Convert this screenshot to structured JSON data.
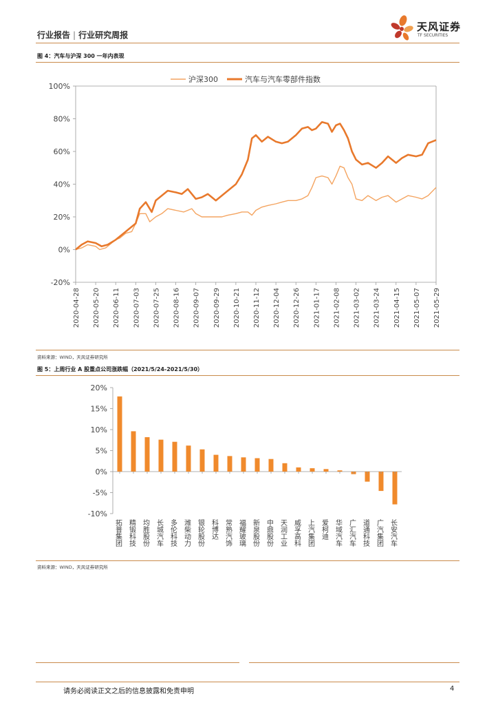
{
  "header": {
    "category": "行业报告",
    "separator": "|",
    "report_type": "行业研究周报"
  },
  "logo": {
    "name": "天风证券",
    "sub": "TF SECURITIES",
    "colors": [
      "#e8792c",
      "#c0392b",
      "#f0a050"
    ]
  },
  "accent_color": "#f08a2c",
  "figure4": {
    "title": "图 4：汽车与沪深 300 一年内表现",
    "source": "资料来源：WIND，天风证券研究所"
  },
  "figure5": {
    "title": "图 5：上周行业 A 股重点公司涨跌幅（2021/5/24-2021/5/30）",
    "source": "资料来源：WIND，天风证券研究所"
  },
  "chart_data": [
    {
      "type": "line",
      "title": "图 4：汽车与沪深 300 一年内表现",
      "x": [
        "2020-04-28",
        "2020-05-20",
        "2020-06-11",
        "2020-07-03",
        "2020-07-25",
        "2020-08-16",
        "2020-09-07",
        "2020-09-29",
        "2020-10-21",
        "2020-11-12",
        "2020-12-04",
        "2020-12-26",
        "2021-01-17",
        "2021-02-08",
        "2021-03-02",
        "2021-03-24",
        "2021-04-15",
        "2021-05-07",
        "2021-05-29"
      ],
      "ylim": [
        -20,
        100
      ],
      "yticks": [
        "-20%",
        "0%",
        "20%",
        "40%",
        "60%",
        "80%",
        "100%"
      ],
      "ytick_values": [
        -20,
        0,
        20,
        40,
        60,
        80,
        100
      ],
      "legend_position": "top",
      "series": [
        {
          "name": "沪深300",
          "color": "#f4a460",
          "points": [
            [
              0,
              0
            ],
            [
              0.3,
              1
            ],
            [
              0.6,
              3
            ],
            [
              1.0,
              2
            ],
            [
              1.2,
              0
            ],
            [
              1.5,
              1
            ],
            [
              1.8,
              4
            ],
            [
              2.0,
              6
            ],
            [
              2.2,
              7
            ],
            [
              2.5,
              10
            ],
            [
              2.8,
              11
            ],
            [
              3.0,
              16
            ],
            [
              3.2,
              22
            ],
            [
              3.5,
              22
            ],
            [
              3.7,
              17
            ],
            [
              4.0,
              20
            ],
            [
              4.3,
              22
            ],
            [
              4.6,
              25
            ],
            [
              5.0,
              24
            ],
            [
              5.4,
              23
            ],
            [
              5.8,
              25
            ],
            [
              6.0,
              22
            ],
            [
              6.3,
              20
            ],
            [
              6.7,
              20
            ],
            [
              7.0,
              20
            ],
            [
              7.3,
              20
            ],
            [
              7.6,
              21
            ],
            [
              8.0,
              22
            ],
            [
              8.3,
              23
            ],
            [
              8.6,
              23
            ],
            [
              8.8,
              21
            ],
            [
              9.0,
              24
            ],
            [
              9.3,
              26
            ],
            [
              9.6,
              27
            ],
            [
              10.0,
              28
            ],
            [
              10.3,
              29
            ],
            [
              10.6,
              30
            ],
            [
              11.0,
              30
            ],
            [
              11.3,
              31
            ],
            [
              11.6,
              33
            ],
            [
              11.8,
              38
            ],
            [
              12.0,
              44
            ],
            [
              12.3,
              45
            ],
            [
              12.6,
              44
            ],
            [
              12.8,
              40
            ],
            [
              13.0,
              45
            ],
            [
              13.2,
              51
            ],
            [
              13.4,
              50
            ],
            [
              13.6,
              44
            ],
            [
              13.8,
              40
            ],
            [
              14.0,
              31
            ],
            [
              14.3,
              30
            ],
            [
              14.6,
              33
            ],
            [
              15.0,
              30
            ],
            [
              15.3,
              32
            ],
            [
              15.6,
              33
            ],
            [
              16.0,
              29
            ],
            [
              16.3,
              31
            ],
            [
              16.6,
              33
            ],
            [
              17.0,
              32
            ],
            [
              17.3,
              31
            ],
            [
              17.6,
              33
            ],
            [
              18.0,
              38
            ]
          ]
        },
        {
          "name": "汽车与汽车零部件指数",
          "color": "#e8792c",
          "points": [
            [
              0,
              0
            ],
            [
              0.3,
              3
            ],
            [
              0.6,
              5
            ],
            [
              1.0,
              4
            ],
            [
              1.3,
              2
            ],
            [
              1.6,
              3
            ],
            [
              2.0,
              6
            ],
            [
              2.3,
              9
            ],
            [
              2.6,
              12
            ],
            [
              3.0,
              16
            ],
            [
              3.2,
              25
            ],
            [
              3.5,
              29
            ],
            [
              3.8,
              23
            ],
            [
              4.0,
              30
            ],
            [
              4.3,
              33
            ],
            [
              4.6,
              36
            ],
            [
              5.0,
              35
            ],
            [
              5.3,
              34
            ],
            [
              5.6,
              37
            ],
            [
              6.0,
              31
            ],
            [
              6.3,
              32
            ],
            [
              6.6,
              34
            ],
            [
              7.0,
              30
            ],
            [
              7.3,
              33
            ],
            [
              7.6,
              36
            ],
            [
              8.0,
              40
            ],
            [
              8.3,
              46
            ],
            [
              8.6,
              55
            ],
            [
              8.8,
              68
            ],
            [
              9.0,
              70
            ],
            [
              9.3,
              66
            ],
            [
              9.6,
              69
            ],
            [
              10.0,
              66
            ],
            [
              10.3,
              65
            ],
            [
              10.6,
              66
            ],
            [
              11.0,
              70
            ],
            [
              11.3,
              74
            ],
            [
              11.6,
              75
            ],
            [
              11.8,
              73
            ],
            [
              12.0,
              74
            ],
            [
              12.3,
              78
            ],
            [
              12.6,
              77
            ],
            [
              12.8,
              72
            ],
            [
              13.0,
              76
            ],
            [
              13.2,
              77
            ],
            [
              13.4,
              73
            ],
            [
              13.6,
              68
            ],
            [
              13.8,
              60
            ],
            [
              14.0,
              55
            ],
            [
              14.3,
              52
            ],
            [
              14.6,
              53
            ],
            [
              15.0,
              50
            ],
            [
              15.3,
              53
            ],
            [
              15.6,
              57
            ],
            [
              16.0,
              53
            ],
            [
              16.3,
              56
            ],
            [
              16.6,
              58
            ],
            [
              17.0,
              57
            ],
            [
              17.3,
              58
            ],
            [
              17.6,
              65
            ],
            [
              18.0,
              67
            ]
          ]
        }
      ]
    },
    {
      "type": "bar",
      "title": "图 5：上周行业 A 股重点公司涨跌幅（2021/5/24-2021/5/30）",
      "categories": [
        "拓普集团",
        "精锻科技",
        "均胜股份",
        "长城汽车",
        "多伦科技",
        "潍柴动力",
        "银轮股份",
        "科博达",
        "常熟汽饰",
        "福耀玻璃",
        "新泉股份",
        "中鼎股份",
        "天润工业",
        "威孚高科",
        "上汽集团",
        "爱柯迪",
        "华域汽车",
        "广汇汽车",
        "道通科技",
        "广汽集团",
        "长安汽车"
      ],
      "values": [
        17.9,
        9.6,
        8.2,
        7.6,
        7.1,
        6.2,
        5.3,
        4.0,
        3.7,
        3.4,
        3.2,
        3.0,
        2.0,
        1.0,
        0.8,
        0.6,
        0.3,
        -0.6,
        -2.4,
        -4.6,
        -7.8
      ],
      "ylim": [
        -10,
        20
      ],
      "yticks": [
        "-10%",
        "-5%",
        "0%",
        "5%",
        "10%",
        "15%",
        "20%"
      ],
      "ytick_values": [
        -10,
        -5,
        0,
        5,
        10,
        15,
        20
      ],
      "color": "#f08a2c"
    }
  ],
  "footer": {
    "disclaimer": "请务必阅读正文之后的信息披露和免责申明",
    "page": "4"
  }
}
